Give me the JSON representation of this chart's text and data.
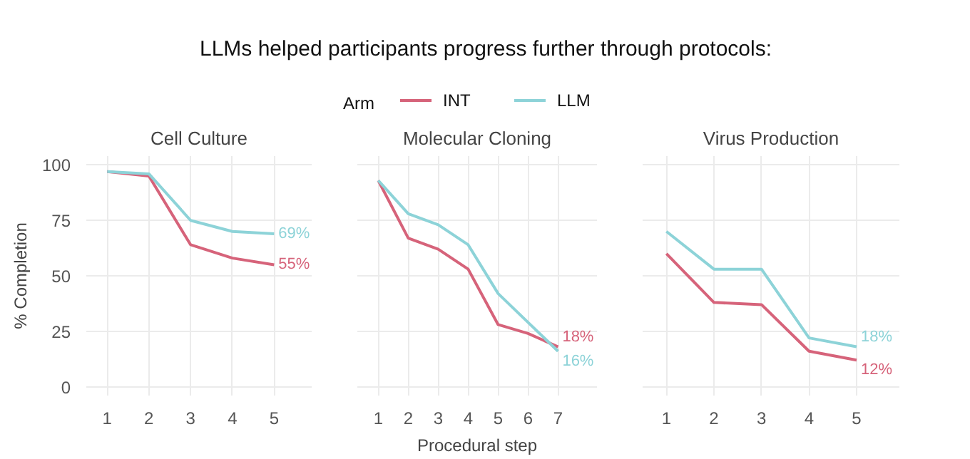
{
  "chart_data": [
    {
      "type": "line",
      "title": "Cell Culture",
      "ylabel": "% Completion",
      "legend_title": "Arm",
      "legend": "top",
      "grid": true,
      "annotations": [
        "LLMs helped participants progress further through protocols:"
      ],
      "x": [
        1,
        2,
        3,
        4,
        5
      ],
      "xlim": [
        0.5,
        5.9
      ],
      "xticks": [
        1,
        2,
        3,
        4,
        5
      ],
      "ylim": [
        -4,
        104
      ],
      "yticks": [
        0,
        25,
        50,
        75,
        100
      ],
      "series": [
        {
          "name": "INT",
          "color": "#d6637a",
          "values": [
            97,
            95,
            64,
            58,
            55
          ],
          "value_labels": [
            null,
            null,
            null,
            null,
            "55%"
          ]
        },
        {
          "name": "LLM",
          "color": "#8dd3d8",
          "values": [
            97,
            96,
            75,
            70,
            69
          ],
          "value_labels": [
            null,
            null,
            null,
            null,
            "69%"
          ]
        }
      ]
    },
    {
      "type": "line",
      "title": "Molecular Cloning",
      "xlabel": "Procedural step",
      "grid": true,
      "tick_labels": "x",
      "x": [
        1,
        2,
        3,
        4,
        5,
        6,
        7
      ],
      "xlim": [
        0.3,
        8.3
      ],
      "xticks": [
        1,
        2,
        3,
        4,
        5,
        6,
        7
      ],
      "ylim": [
        -4,
        104
      ],
      "yticks": [
        0,
        25,
        50,
        75,
        100
      ],
      "series": [
        {
          "color": "#d6637a",
          "values": [
            93,
            67,
            62,
            53,
            28,
            24,
            18
          ],
          "value_labels": [
            null,
            null,
            null,
            null,
            null,
            null,
            "18%"
          ]
        },
        {
          "color": "#8dd3d8",
          "values": [
            93,
            78,
            73,
            64,
            42,
            29,
            16
          ],
          "value_labels": [
            null,
            null,
            null,
            null,
            null,
            null,
            "16%"
          ]
        }
      ]
    },
    {
      "type": "line",
      "title": "Virus Production",
      "grid": true,
      "tick_labels": "x",
      "x": [
        1,
        2,
        3,
        4,
        5
      ],
      "xlim": [
        0.5,
        5.9
      ],
      "xticks": [
        1,
        2,
        3,
        4,
        5
      ],
      "ylim": [
        -4,
        104
      ],
      "yticks": [
        0,
        25,
        50,
        75,
        100
      ],
      "series": [
        {
          "color": "#d6637a",
          "values": [
            60,
            38,
            37,
            16,
            12
          ],
          "value_labels": [
            null,
            null,
            null,
            null,
            "12%"
          ]
        },
        {
          "color": "#8dd3d8",
          "values": [
            70,
            53,
            53,
            22,
            18
          ],
          "value_labels": [
            null,
            null,
            null,
            null,
            "18%"
          ]
        }
      ]
    }
  ]
}
